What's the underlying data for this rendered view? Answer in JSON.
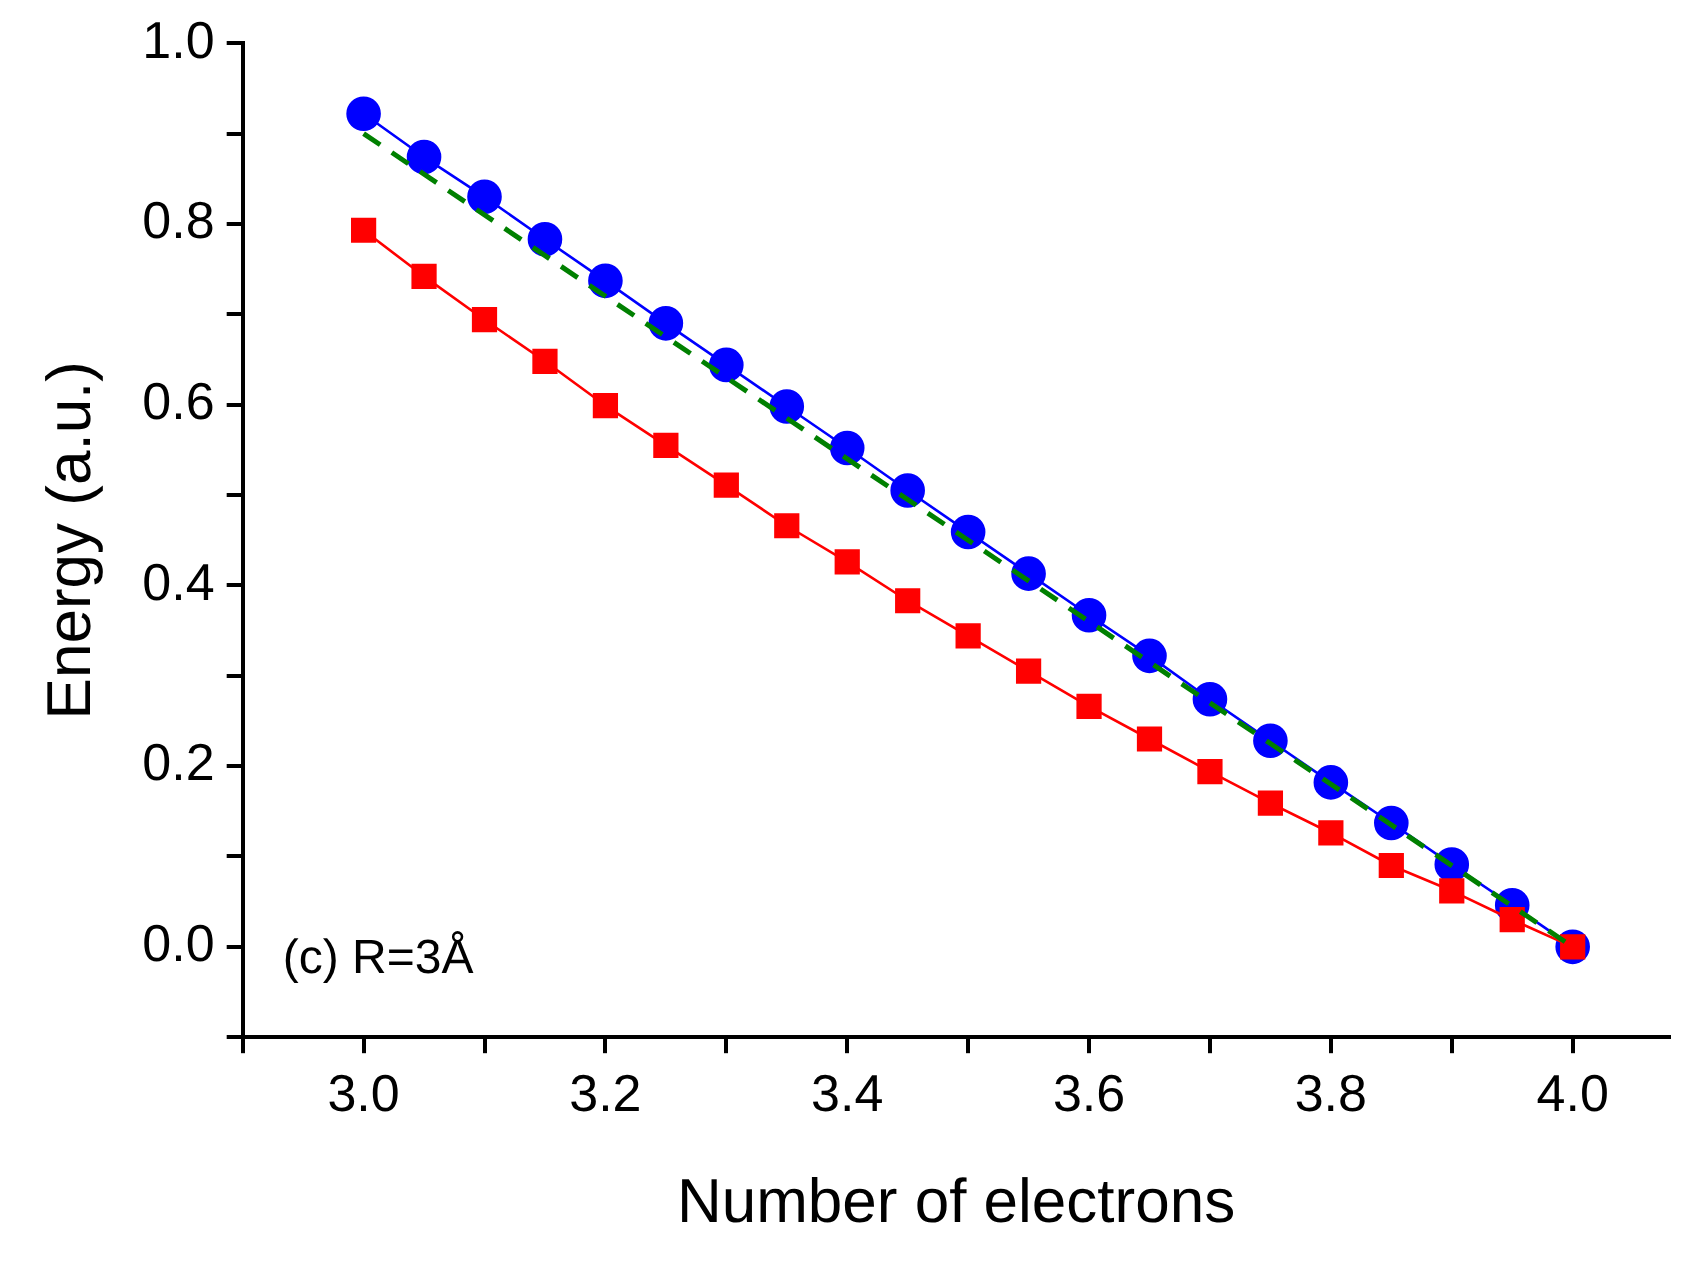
{
  "chart_data": {
    "type": "line",
    "xlabel": "Number of electrons",
    "ylabel": "Energy (a.u.)",
    "x": [
      3.0,
      3.05,
      3.1,
      3.15,
      3.2,
      3.25,
      3.3,
      3.35,
      3.4,
      3.45,
      3.5,
      3.55,
      3.6,
      3.65,
      3.7,
      3.75,
      3.8,
      3.85,
      3.9,
      3.95,
      4.0
    ],
    "series": [
      {
        "color": "#0000ff",
        "marker": "circle",
        "line_style": "solid",
        "values": [
          0.922,
          0.874,
          0.83,
          0.783,
          0.737,
          0.69,
          0.644,
          0.598,
          0.552,
          0.505,
          0.459,
          0.413,
          0.367,
          0.322,
          0.274,
          0.228,
          0.182,
          0.137,
          0.091,
          0.046,
          0.0
        ]
      },
      {
        "color": "#ff0000",
        "marker": "square",
        "line_style": "solid",
        "values": [
          0.793,
          0.742,
          0.694,
          0.648,
          0.599,
          0.555,
          0.511,
          0.466,
          0.426,
          0.383,
          0.344,
          0.305,
          0.266,
          0.23,
          0.194,
          0.159,
          0.126,
          0.09,
          0.062,
          0.03,
          0.0
        ]
      },
      {
        "color": "#008000",
        "marker": "none",
        "line_style": "dashed",
        "x": [
          3.0,
          4.0
        ],
        "values": [
          0.9,
          0.0
        ]
      }
    ],
    "xlim": [
      2.9,
      4.08
    ],
    "ylim": [
      -0.1,
      1.0
    ],
    "xticks": [
      {
        "value": 2.9,
        "label": null
      },
      {
        "value": 3.0,
        "label": "3.0"
      },
      {
        "value": 3.1,
        "label": null
      },
      3.2,
      {
        "value": 3.3,
        "label": null
      },
      3.4,
      {
        "value": 3.5,
        "label": null
      },
      3.6,
      {
        "value": 3.7,
        "label": null
      },
      3.8,
      {
        "value": 3.9,
        "label": null
      },
      {
        "value": 4.0,
        "label": "4.0"
      }
    ],
    "yticks": [
      {
        "value": -0.1,
        "label": null
      },
      {
        "value": 0.0,
        "label": "0.0"
      },
      {
        "value": 0.1,
        "label": null
      },
      0.2,
      {
        "value": 0.3,
        "label": null
      },
      0.4,
      {
        "value": 0.5,
        "label": null
      },
      0.6,
      {
        "value": 0.7,
        "label": null
      },
      0.8,
      {
        "value": 0.9,
        "label": null
      },
      {
        "value": 1.0,
        "label": "1.0"
      }
    ],
    "annotations": [
      "(c) R=3Å"
    ],
    "grid": false,
    "legend": false
  }
}
